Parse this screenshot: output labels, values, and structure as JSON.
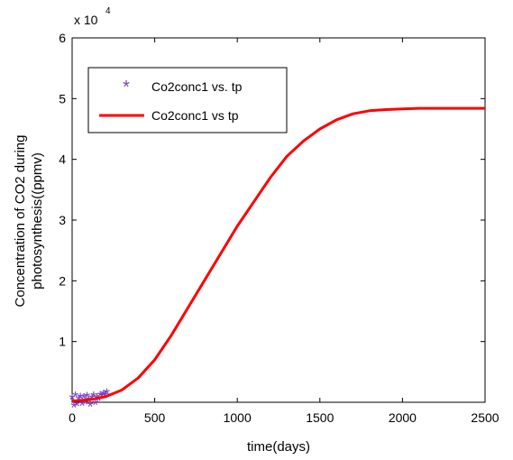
{
  "chart_data": {
    "type": "line",
    "xlabel": "time(days)",
    "ylabel_lines": [
      "Concentration of CO2 during",
      "photosynthesis((ppmv)"
    ],
    "xlim": [
      0,
      2500
    ],
    "ylim": [
      0,
      60000
    ],
    "xticks": [
      0,
      500,
      1000,
      1500,
      2000,
      2500
    ],
    "xtick_labels": [
      "0",
      "500",
      "1000",
      "1500",
      "2000",
      "2500"
    ],
    "yticks": [
      10000,
      20000,
      30000,
      40000,
      50000,
      60000
    ],
    "ytick_labels": [
      "1",
      "2",
      "3",
      "4",
      "5",
      "6"
    ],
    "y_multiplier": {
      "base": "x 10",
      "exponent": "4"
    },
    "grid": false,
    "legend_position": "top-left",
    "legend": [
      {
        "label": "Co2conc1 vs. tp",
        "marker": "asterisk",
        "color": "#7b3fbf"
      },
      {
        "label": "Co2conc1 vs tp",
        "line": "solid",
        "color": "#ff0000"
      }
    ],
    "series": [
      {
        "name": "Co2conc1 vs. tp",
        "style": "markers",
        "color": "#7b3fbf",
        "x": [
          0,
          10,
          20,
          30,
          40,
          50,
          60,
          70,
          80,
          90,
          100,
          110,
          120,
          130,
          140,
          150,
          160,
          170,
          180,
          190,
          200,
          210
        ],
        "y": [
          500,
          -800,
          900,
          -600,
          300,
          700,
          -500,
          600,
          -300,
          800,
          200,
          -700,
          500,
          900,
          -400,
          600,
          300,
          1000,
          800,
          1200,
          1000,
          1400
        ]
      },
      {
        "name": "Co2conc1 vs tp",
        "style": "line",
        "color": "#ff0000",
        "x": [
          0,
          100,
          200,
          300,
          400,
          500,
          600,
          700,
          800,
          900,
          1000,
          1100,
          1200,
          1300,
          1400,
          1500,
          1600,
          1700,
          1800,
          1900,
          2000,
          2100,
          2200,
          2300,
          2400,
          2500
        ],
        "y": [
          200,
          400,
          900,
          2000,
          4000,
          7000,
          11000,
          15500,
          20000,
          24500,
          29000,
          33000,
          37000,
          40500,
          43000,
          45000,
          46500,
          47500,
          48000,
          48200,
          48300,
          48400,
          48400,
          48400,
          48400,
          48400
        ]
      }
    ]
  }
}
